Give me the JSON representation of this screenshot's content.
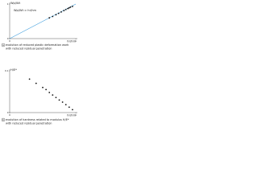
{
  "chart_data": [
    {
      "type": "scatter",
      "label": "a",
      "caption": [
        "evolution of reduced plastic deformation work",
        "with reduced residual penetration"
      ],
      "annotation": "Wp/Wt ≈ hr/hm",
      "ylabel": "Wp/Wt",
      "xlabel": "hr/hm",
      "x": [
        0.6,
        0.65,
        0.7,
        0.74,
        0.78,
        0.82,
        0.85,
        0.88,
        0.9,
        0.92,
        0.95
      ],
      "values": [
        0.6,
        0.64,
        0.69,
        0.73,
        0.77,
        0.81,
        0.84,
        0.87,
        0.89,
        0.91,
        0.93
      ],
      "color": "#111111",
      "fit_line": {
        "x": [
          0,
          1
        ],
        "values": [
          0,
          1
        ],
        "color": "#4aa3df"
      },
      "xlim": [
        0,
        1
      ],
      "ylim": [
        0,
        1
      ],
      "xticks": [
        0,
        1
      ],
      "yticks": [
        0,
        1
      ]
    },
    {
      "type": "scatter",
      "label": "b",
      "caption": [
        "evolution of hardness related to modulus H/E*",
        "with reduced residual penetration"
      ],
      "ylabel": "H/E*",
      "xlabel": "hr/hm",
      "x": [
        0.3,
        0.4,
        0.5,
        0.55,
        0.6,
        0.65,
        0.7,
        0.75,
        0.8,
        0.85,
        0.9,
        0.95
      ],
      "values": [
        0.08,
        0.07,
        0.06,
        0.055,
        0.048,
        0.042,
        0.036,
        0.03,
        0.025,
        0.019,
        0.013,
        0.007
      ],
      "color": "#111111",
      "xlim": [
        0,
        1
      ],
      "ylim": [
        0,
        0.1
      ],
      "xticks": [
        0,
        1
      ],
      "yticks": [
        0,
        0.1
      ]
    }
  ]
}
